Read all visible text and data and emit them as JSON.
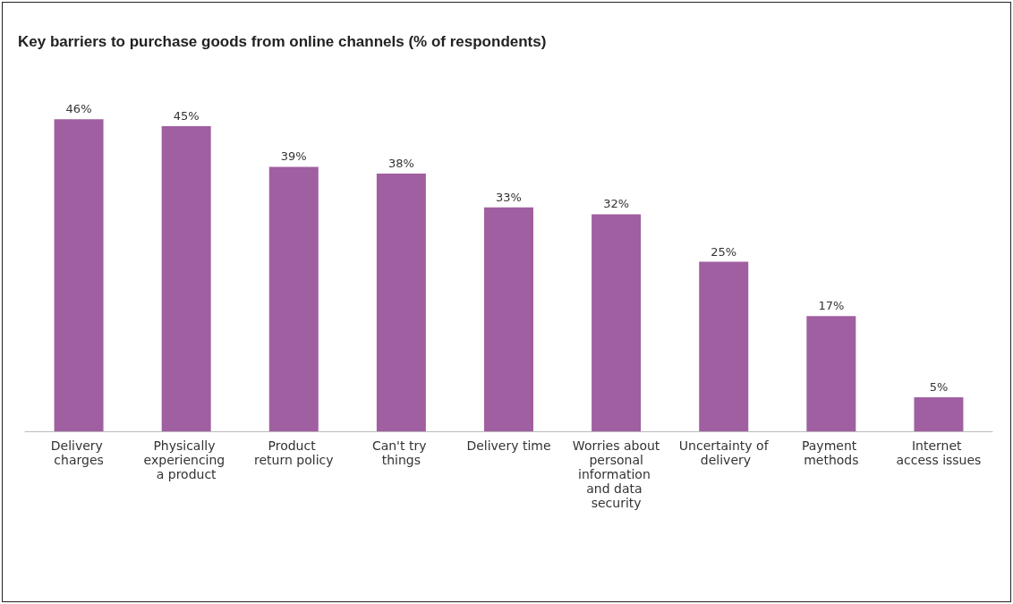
{
  "chart_data": {
    "type": "bar",
    "title": "Key barriers to purchase goods from online channels (% of respondents)",
    "categories": [
      "Delivery charges",
      "Physically experiencing a product",
      "Product return policy",
      "Can't try things",
      "Delivery time",
      "Worries about personal information and data security",
      "Uncertainty of delivery",
      "Payment methods",
      "Internet access issues"
    ],
    "values": [
      46,
      45,
      39,
      38,
      33,
      32,
      25,
      17,
      5
    ],
    "value_labels": [
      "46%",
      "45%",
      "39%",
      "38%",
      "33%",
      "32%",
      "25%",
      "17%",
      "5%"
    ],
    "color": "#a05fa0"
  }
}
